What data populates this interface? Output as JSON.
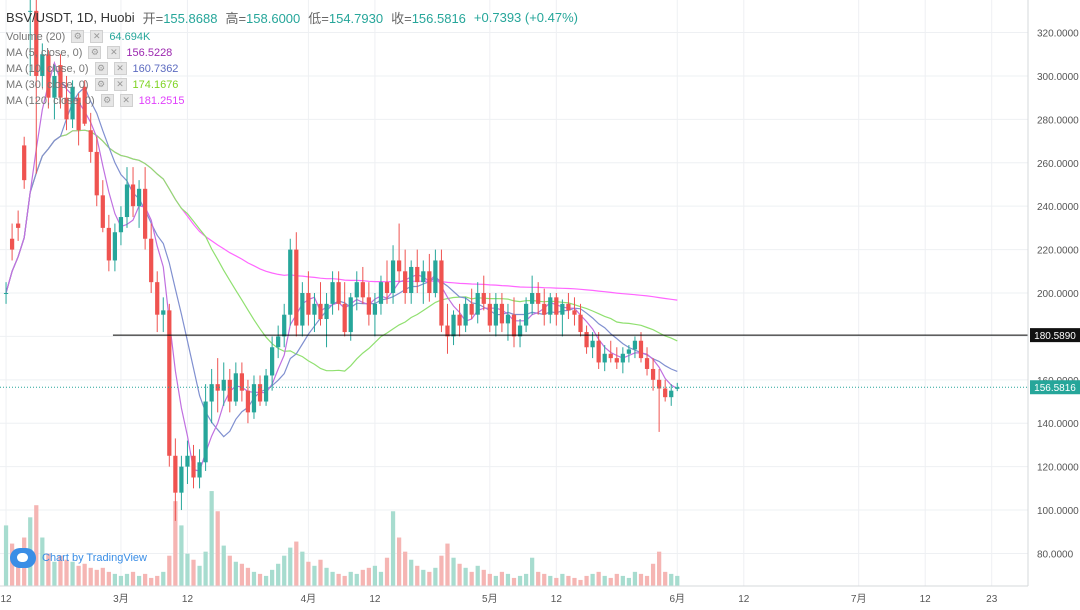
{
  "header": {
    "symbol": "BSV/USDT, 1D, Huobi",
    "open_label": "开=",
    "open": "155.8688",
    "high_label": "高=",
    "high": "158.6000",
    "low_label": "低=",
    "low": "154.7930",
    "close_label": "收=",
    "close": "156.5816",
    "change": "+0.7393 (+0.47%)"
  },
  "indicators": [
    {
      "name": "Volume (20)",
      "value": "64.694K",
      "color": "#26a69a"
    },
    {
      "name": "MA (5, close, 0)",
      "value": "156.5228",
      "color": "#9c27b0"
    },
    {
      "name": "MA (10, close, 0)",
      "value": "160.7362",
      "color": "#5c6bc0"
    },
    {
      "name": "MA (30, close, 0)",
      "value": "174.1676",
      "color": "#7ed321"
    },
    {
      "name": "MA (120, close, 0)",
      "value": "181.2515",
      "color": "#e040fb"
    }
  ],
  "logo_text": "Chart by TradingView",
  "colors": {
    "up": "#26a69a",
    "down": "#ef5350",
    "vol_up": "#a7dccf",
    "vol_down": "#f5b5b3",
    "ma5": "#c070e0",
    "ma10": "#8090d0",
    "ma30": "#90e070",
    "ma120": "#ff66ff"
  },
  "chart_data": {
    "type": "candlestick",
    "ylim": [
      65,
      335
    ],
    "y_ticks": [
      "80.0000",
      "100.0000",
      "120.0000",
      "140.0000",
      "160.0000",
      "180.0000",
      "200.0000",
      "220.0000",
      "240.0000",
      "260.0000",
      "280.0000",
      "300.0000",
      "320.0000"
    ],
    "x_ticks": [
      {
        "label": "12",
        "day": 0
      },
      {
        "label": "3月",
        "day": 19
      },
      {
        "label": "12",
        "day": 30
      },
      {
        "label": "4月",
        "day": 50
      },
      {
        "label": "12",
        "day": 61
      },
      {
        "label": "5月",
        "day": 80
      },
      {
        "label": "12",
        "day": 91
      },
      {
        "label": "6月",
        "day": 111
      },
      {
        "label": "12",
        "day": 122
      },
      {
        "label": "7月",
        "day": 141
      },
      {
        "label": "12",
        "day": 152
      },
      {
        "label": "23",
        "day": 163
      }
    ],
    "day_range": [
      -1,
      169
    ],
    "horizontal_line": {
      "value": 180.589,
      "label": "180.5890"
    },
    "last_price": {
      "value": 156.5816,
      "label": "156.5816"
    },
    "candles": [
      [
        0,
        200,
        205,
        195,
        200
      ],
      [
        1,
        225,
        232,
        215,
        220
      ],
      [
        2,
        232,
        238,
        224,
        230
      ],
      [
        3,
        268,
        272,
        248,
        252
      ],
      [
        4,
        330,
        336,
        300,
        330
      ],
      [
        5,
        330,
        336,
        255,
        300
      ],
      [
        6,
        300,
        315,
        295,
        310
      ],
      [
        7,
        310,
        312,
        285,
        290
      ],
      [
        8,
        290,
        305,
        280,
        300
      ],
      [
        9,
        305,
        310,
        285,
        290
      ],
      [
        10,
        290,
        300,
        275,
        280
      ],
      [
        11,
        280,
        298,
        276,
        295
      ],
      [
        12,
        290,
        292,
        268,
        275
      ],
      [
        13,
        295,
        298,
        277,
        278
      ],
      [
        14,
        275,
        283,
        260,
        265
      ],
      [
        15,
        265,
        272,
        240,
        245
      ],
      [
        16,
        245,
        252,
        228,
        230
      ],
      [
        17,
        230,
        236,
        210,
        215
      ],
      [
        18,
        215,
        232,
        210,
        228
      ],
      [
        19,
        228,
        240,
        222,
        235
      ],
      [
        20,
        235,
        258,
        230,
        250
      ],
      [
        21,
        250,
        258,
        235,
        240
      ],
      [
        22,
        240,
        252,
        230,
        248
      ],
      [
        23,
        248,
        258,
        220,
        225
      ],
      [
        24,
        225,
        232,
        200,
        205
      ],
      [
        25,
        205,
        210,
        182,
        190
      ],
      [
        26,
        190,
        198,
        182,
        192
      ],
      [
        27,
        192,
        195,
        120,
        125
      ],
      [
        28,
        125,
        133,
        95,
        108
      ],
      [
        29,
        108,
        125,
        100,
        120
      ],
      [
        30,
        120,
        132,
        112,
        125
      ],
      [
        31,
        125,
        130,
        110,
        115
      ],
      [
        32,
        115,
        128,
        110,
        122
      ],
      [
        33,
        122,
        158,
        118,
        150
      ],
      [
        34,
        150,
        165,
        140,
        158
      ],
      [
        35,
        158,
        170,
        145,
        155
      ],
      [
        36,
        155,
        168,
        148,
        160
      ],
      [
        37,
        160,
        165,
        145,
        150
      ],
      [
        38,
        150,
        168,
        148,
        163
      ],
      [
        39,
        163,
        168,
        150,
        155
      ],
      [
        40,
        155,
        160,
        140,
        145
      ],
      [
        41,
        145,
        162,
        142,
        158
      ],
      [
        42,
        158,
        162,
        148,
        150
      ],
      [
        43,
        150,
        165,
        148,
        162
      ],
      [
        44,
        162,
        180,
        155,
        175
      ],
      [
        45,
        175,
        185,
        170,
        180
      ],
      [
        46,
        180,
        195,
        175,
        190
      ],
      [
        47,
        190,
        225,
        185,
        220
      ],
      [
        48,
        220,
        228,
        180,
        185
      ],
      [
        49,
        185,
        205,
        180,
        200
      ],
      [
        50,
        200,
        210,
        185,
        190
      ],
      [
        51,
        190,
        200,
        182,
        195
      ],
      [
        52,
        195,
        205,
        185,
        188
      ],
      [
        53,
        188,
        200,
        175,
        195
      ],
      [
        54,
        195,
        210,
        190,
        205
      ],
      [
        55,
        205,
        210,
        192,
        195
      ],
      [
        56,
        195,
        205,
        180,
        182
      ],
      [
        57,
        182,
        200,
        178,
        198
      ],
      [
        58,
        198,
        210,
        192,
        205
      ],
      [
        59,
        205,
        212,
        195,
        198
      ],
      [
        60,
        198,
        205,
        185,
        190
      ],
      [
        61,
        190,
        200,
        180,
        195
      ],
      [
        62,
        195,
        208,
        190,
        205
      ],
      [
        63,
        205,
        215,
        195,
        200
      ],
      [
        64,
        200,
        222,
        195,
        215
      ],
      [
        65,
        215,
        232,
        205,
        210
      ],
      [
        66,
        210,
        220,
        195,
        200
      ],
      [
        67,
        200,
        215,
        195,
        212
      ],
      [
        68,
        212,
        220,
        200,
        205
      ],
      [
        69,
        205,
        215,
        195,
        210
      ],
      [
        70,
        210,
        218,
        196,
        200
      ],
      [
        71,
        200,
        220,
        198,
        215
      ],
      [
        72,
        215,
        220,
        182,
        185
      ],
      [
        73,
        185,
        195,
        172,
        180
      ],
      [
        74,
        180,
        192,
        176,
        190
      ],
      [
        75,
        190,
        195,
        180,
        185
      ],
      [
        76,
        185,
        198,
        182,
        195
      ],
      [
        77,
        195,
        202,
        188,
        190
      ],
      [
        78,
        190,
        205,
        186,
        200
      ],
      [
        79,
        200,
        208,
        192,
        195
      ],
      [
        80,
        195,
        200,
        182,
        185
      ],
      [
        81,
        185,
        200,
        180,
        195
      ],
      [
        82,
        195,
        200,
        182,
        186
      ],
      [
        83,
        186,
        195,
        178,
        190
      ],
      [
        84,
        190,
        198,
        175,
        180
      ],
      [
        85,
        180,
        188,
        175,
        185
      ],
      [
        86,
        185,
        198,
        182,
        195
      ],
      [
        87,
        195,
        208,
        190,
        200
      ],
      [
        88,
        200,
        205,
        190,
        195
      ],
      [
        89,
        195,
        202,
        185,
        190
      ],
      [
        90,
        190,
        200,
        186,
        198
      ],
      [
        91,
        198,
        200,
        185,
        190
      ],
      [
        92,
        190,
        197,
        180,
        195
      ],
      [
        93,
        195,
        200,
        188,
        192
      ],
      [
        94,
        192,
        198,
        185,
        190
      ],
      [
        95,
        190,
        195,
        180,
        182
      ],
      [
        96,
        182,
        185,
        172,
        175
      ],
      [
        97,
        175,
        182,
        170,
        178
      ],
      [
        98,
        178,
        182,
        165,
        168
      ],
      [
        99,
        168,
        176,
        164,
        172
      ],
      [
        100,
        172,
        178,
        168,
        170
      ],
      [
        101,
        170,
        175,
        165,
        168
      ],
      [
        102,
        168,
        175,
        163,
        172
      ],
      [
        103,
        172,
        176,
        168,
        174
      ],
      [
        104,
        174,
        180,
        170,
        178
      ],
      [
        105,
        178,
        182,
        168,
        170
      ],
      [
        106,
        170,
        175,
        162,
        165
      ],
      [
        107,
        165,
        170,
        155,
        160
      ],
      [
        108,
        160,
        165,
        136,
        156
      ],
      [
        109,
        156,
        160,
        150,
        152
      ],
      [
        110,
        152,
        158,
        148,
        155
      ],
      [
        111,
        155.87,
        158.6,
        154.79,
        156.58
      ]
    ],
    "volumes": [
      [
        0,
        60
      ],
      [
        1,
        42
      ],
      [
        2,
        28
      ],
      [
        3,
        48
      ],
      [
        4,
        68
      ],
      [
        5,
        80
      ],
      [
        6,
        48
      ],
      [
        7,
        32
      ],
      [
        8,
        24
      ],
      [
        9,
        30
      ],
      [
        10,
        26
      ],
      [
        11,
        24
      ],
      [
        12,
        20
      ],
      [
        13,
        22
      ],
      [
        14,
        18
      ],
      [
        15,
        16
      ],
      [
        16,
        18
      ],
      [
        17,
        14
      ],
      [
        18,
        12
      ],
      [
        19,
        10
      ],
      [
        20,
        12
      ],
      [
        21,
        14
      ],
      [
        22,
        10
      ],
      [
        23,
        12
      ],
      [
        24,
        8
      ],
      [
        25,
        10
      ],
      [
        26,
        14
      ],
      [
        27,
        30
      ],
      [
        28,
        84
      ],
      [
        29,
        60
      ],
      [
        30,
        32
      ],
      [
        31,
        26
      ],
      [
        32,
        20
      ],
      [
        33,
        34
      ],
      [
        34,
        94
      ],
      [
        35,
        74
      ],
      [
        36,
        40
      ],
      [
        37,
        30
      ],
      [
        38,
        24
      ],
      [
        39,
        22
      ],
      [
        40,
        18
      ],
      [
        41,
        14
      ],
      [
        42,
        12
      ],
      [
        43,
        10
      ],
      [
        44,
        16
      ],
      [
        45,
        22
      ],
      [
        46,
        30
      ],
      [
        47,
        38
      ],
      [
        48,
        44
      ],
      [
        49,
        34
      ],
      [
        50,
        24
      ],
      [
        51,
        20
      ],
      [
        52,
        26
      ],
      [
        53,
        18
      ],
      [
        54,
        14
      ],
      [
        55,
        12
      ],
      [
        56,
        10
      ],
      [
        57,
        14
      ],
      [
        58,
        12
      ],
      [
        59,
        16
      ],
      [
        60,
        18
      ],
      [
        61,
        20
      ],
      [
        62,
        14
      ],
      [
        63,
        28
      ],
      [
        64,
        74
      ],
      [
        65,
        48
      ],
      [
        66,
        34
      ],
      [
        67,
        26
      ],
      [
        68,
        20
      ],
      [
        69,
        16
      ],
      [
        70,
        14
      ],
      [
        71,
        18
      ],
      [
        72,
        30
      ],
      [
        73,
        42
      ],
      [
        74,
        28
      ],
      [
        75,
        22
      ],
      [
        76,
        18
      ],
      [
        77,
        14
      ],
      [
        78,
        20
      ],
      [
        79,
        16
      ],
      [
        80,
        12
      ],
      [
        81,
        10
      ],
      [
        82,
        14
      ],
      [
        83,
        12
      ],
      [
        84,
        8
      ],
      [
        85,
        10
      ],
      [
        86,
        12
      ],
      [
        87,
        28
      ],
      [
        88,
        14
      ],
      [
        89,
        12
      ],
      [
        90,
        10
      ],
      [
        91,
        8
      ],
      [
        92,
        12
      ],
      [
        93,
        10
      ],
      [
        94,
        8
      ],
      [
        95,
        6
      ],
      [
        96,
        10
      ],
      [
        97,
        12
      ],
      [
        98,
        14
      ],
      [
        99,
        10
      ],
      [
        100,
        8
      ],
      [
        101,
        12
      ],
      [
        102,
        10
      ],
      [
        103,
        8
      ],
      [
        104,
        14
      ],
      [
        105,
        12
      ],
      [
        106,
        10
      ],
      [
        107,
        22
      ],
      [
        108,
        34
      ],
      [
        109,
        14
      ],
      [
        110,
        12
      ],
      [
        111,
        10
      ]
    ]
  }
}
